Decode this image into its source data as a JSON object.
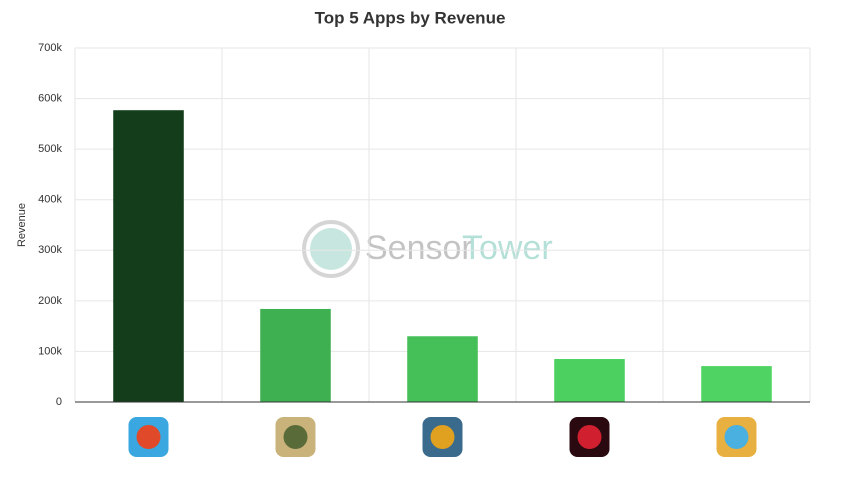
{
  "chart_data": {
    "type": "bar",
    "title": "Top 5 Apps by Revenue",
    "y_label": "Revenue",
    "watermark": [
      "Sensor",
      "Tower"
    ],
    "categories": [
      null,
      null,
      null,
      null,
      null
    ],
    "values": [
      577000,
      184000,
      130000,
      85000,
      71000
    ],
    "colors": [
      "#133d1b",
      "#3eb052",
      "#45bf58",
      "#4cd161",
      "#4fd463"
    ],
    "ylim": [
      0,
      700000
    ],
    "yticks": [
      0,
      {
        "value": 100000,
        "label": "100k"
      },
      {
        "value": 200000,
        "label": "200k"
      },
      {
        "value": 300000,
        "label": "300k"
      },
      {
        "value": 400000,
        "label": "400k"
      },
      {
        "value": 500000,
        "label": "500k"
      },
      {
        "value": 600000,
        "label": "600k"
      },
      {
        "value": 700000,
        "label": "700k"
      }
    ],
    "grid": true
  }
}
